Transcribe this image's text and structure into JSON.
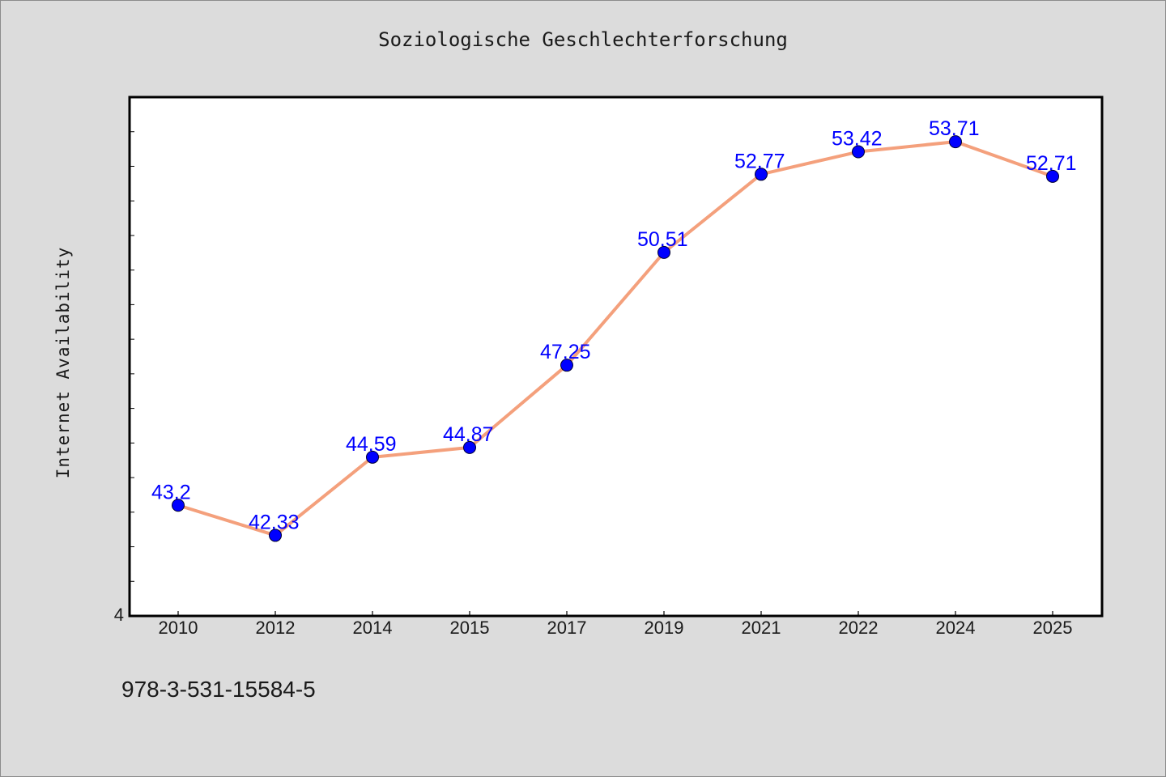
{
  "chart_data": {
    "type": "line",
    "title": "Soziologische Geschlechterforschung",
    "xlabel": "",
    "ylabel": "Internet Availability",
    "categories": [
      "2010",
      "2012",
      "2014",
      "2015",
      "2017",
      "2019",
      "2021",
      "2022",
      "2024",
      "2025"
    ],
    "series": [
      {
        "values": [
          43.2,
          42.33,
          44.59,
          44.87,
          47.25,
          50.51,
          52.77,
          53.42,
          53.71,
          52.71
        ],
        "data_labels": [
          "43.2",
          "42.33",
          "44.59",
          "44.87",
          "47.25",
          "50.51",
          "52.77",
          "53.42",
          "53.71",
          "52.71"
        ]
      }
    ],
    "ylim": [
      40,
      55
    ],
    "y_tick_labels": [
      "4"
    ],
    "grid": false,
    "legend": "none",
    "colors": {
      "line": "#f4a07c",
      "marker": "#0000ff",
      "data_label": "#0000ff",
      "figure_background": "#dcdcdc",
      "plot_background": "#ffffff"
    }
  },
  "footer": {
    "code": "978-3-531-15584-5"
  }
}
